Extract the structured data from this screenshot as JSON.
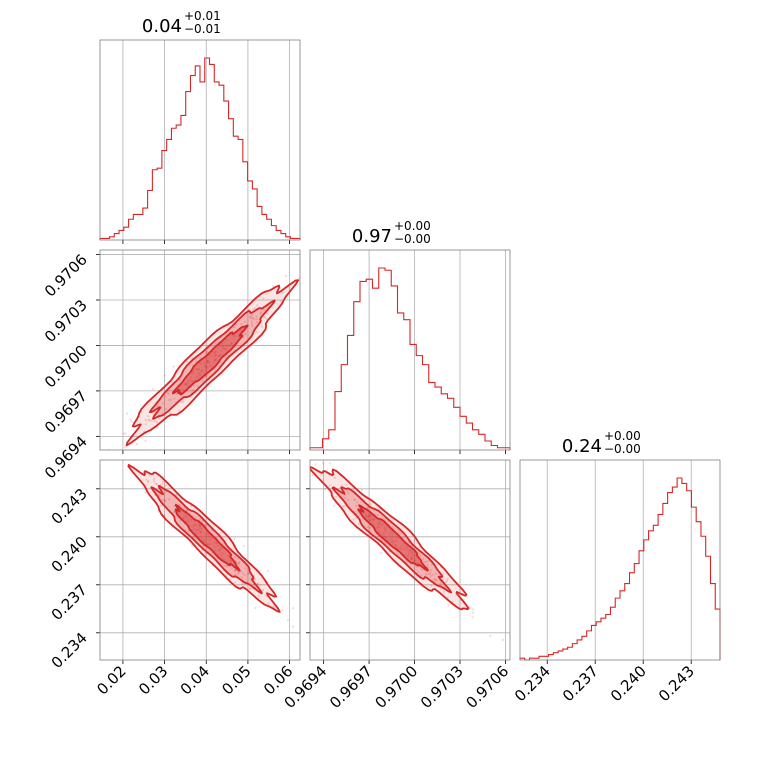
{
  "colors": {
    "series": "#d62728",
    "grid": "#b0b0b0",
    "frame": "#808080"
  },
  "chart_data": {
    "type": "corner",
    "parameters": [
      {
        "id": "p1",
        "title": {
          "value": "0.04",
          "plus": "+0.01",
          "minus": "−0.01"
        },
        "range": [
          0.0145,
          0.0625
        ],
        "ticks": [
          0.02,
          0.03,
          0.04,
          0.05,
          0.06
        ],
        "tick_labels": [
          "0.02",
          "0.03",
          "0.04",
          "0.05",
          "0.06"
        ]
      },
      {
        "id": "p2",
        "title": {
          "value": "0.97",
          "plus": "+0.00",
          "minus": "−0.00"
        },
        "range": [
          0.96931,
          0.97063
        ],
        "ticks": [
          0.9694,
          0.9697,
          0.97,
          0.9703,
          0.9706
        ],
        "tick_labels": [
          "0.9694",
          "0.9697",
          "0.9700",
          "0.9703",
          "0.9706"
        ]
      },
      {
        "id": "p3",
        "title": {
          "value": "0.24",
          "plus": "+0.00",
          "minus": "−0.00"
        },
        "range": [
          0.2323,
          0.2448
        ],
        "ticks": [
          0.234,
          0.237,
          0.24,
          0.243
        ],
        "tick_labels": [
          "0.234",
          "0.237",
          "0.240",
          "0.243"
        ]
      }
    ],
    "marginals": {
      "p1": [
        1,
        1,
        2,
        4,
        6,
        8,
        13,
        16,
        16,
        20,
        31,
        44,
        45,
        56,
        63,
        70,
        72,
        78,
        93,
        103,
        109,
        99,
        114,
        110,
        99,
        97,
        87,
        76,
        65,
        63,
        49,
        37,
        32,
        21,
        16,
        13,
        9,
        6,
        4,
        2,
        1,
        1
      ],
      "p2": [
        1,
        1,
        5,
        9,
        26,
        38,
        51,
        66,
        75,
        76,
        72,
        81,
        80,
        73,
        61,
        58,
        47,
        42,
        38,
        30,
        28,
        25,
        23,
        19,
        15,
        12,
        9,
        7,
        4,
        2,
        1,
        1
      ],
      "p3": [
        1,
        0,
        1,
        1,
        2,
        2,
        3,
        4,
        5,
        6,
        7,
        9,
        11,
        13,
        16,
        19,
        21,
        23,
        25,
        29,
        34,
        38,
        42,
        48,
        53,
        60,
        66,
        71,
        74,
        80,
        86,
        92,
        95,
        100,
        97,
        93,
        84,
        76,
        68,
        57,
        42,
        28
      ]
    },
    "pairs": [
      {
        "x": "p1",
        "y": "p2",
        "relation": "positive",
        "x_range": [
          0.024,
          0.058
        ],
        "y_range": [
          0.96945,
          0.97035
        ]
      },
      {
        "x": "p1",
        "y": "p3",
        "relation": "negative",
        "x_range": [
          0.025,
          0.055
        ],
        "y_range": [
          0.2361,
          0.2438
        ]
      },
      {
        "x": "p2",
        "y": "p3",
        "relation": "negative",
        "x_range": [
          0.96941,
          0.97029
        ],
        "y_range": [
          0.2361,
          0.2438
        ]
      }
    ],
    "grid": true,
    "contour_levels": 3
  }
}
